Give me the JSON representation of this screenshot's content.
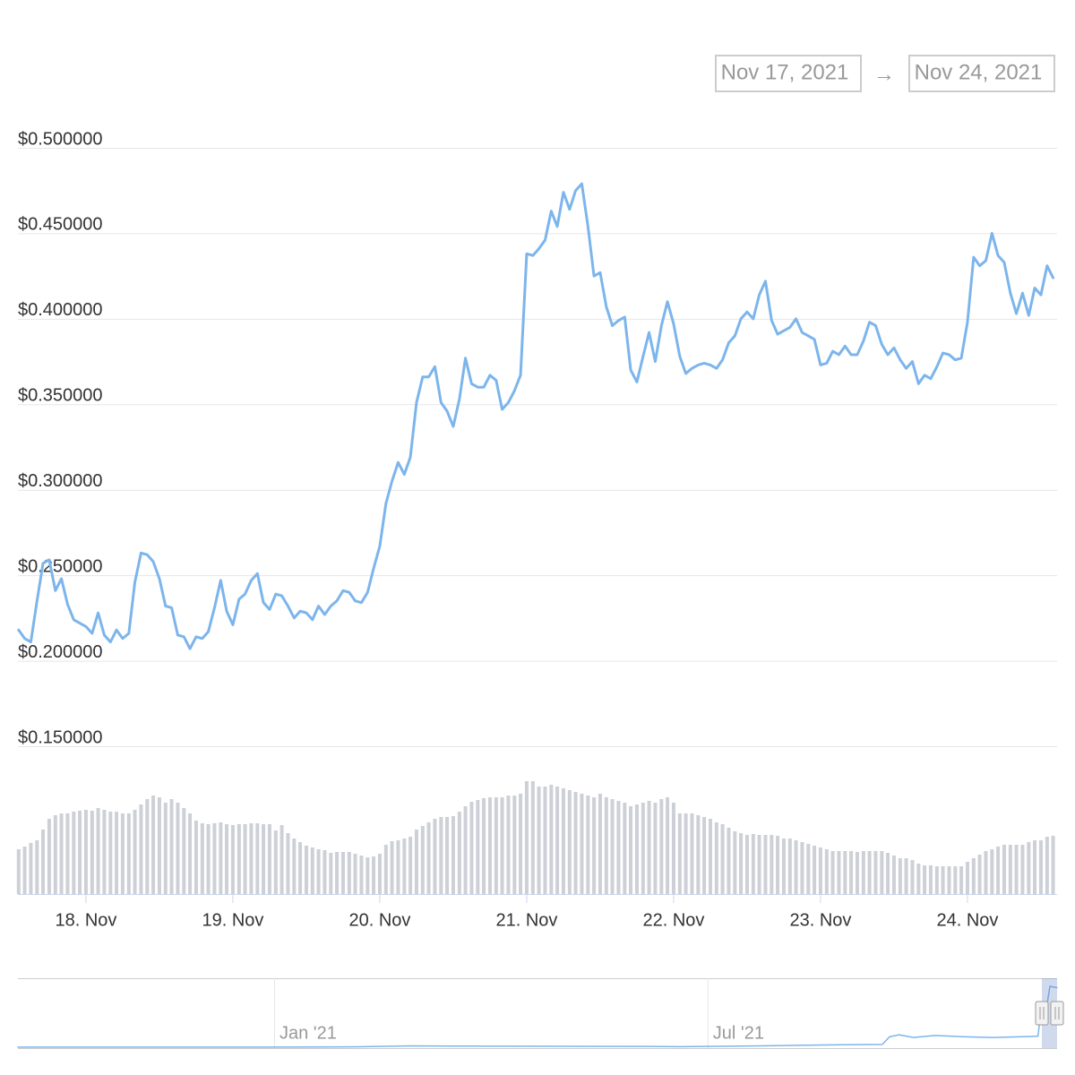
{
  "date_range": {
    "from": "Nov 17, 2021",
    "separator": "→",
    "to": "Nov 24, 2021"
  },
  "chart_data": {
    "type": "line",
    "color": "#7cb5ec",
    "grid": true,
    "xlim": [
      17.537,
      24.61
    ],
    "ylim": [
      0.15,
      0.5
    ],
    "xticks": [
      {
        "value": 18,
        "label": "18. Nov"
      },
      {
        "value": 19,
        "label": "19. Nov"
      },
      {
        "value": 20,
        "label": "20. Nov"
      },
      {
        "value": 21,
        "label": "21. Nov"
      },
      {
        "value": 22,
        "label": "22. Nov"
      },
      {
        "value": 23,
        "label": "23. Nov"
      },
      {
        "value": 24,
        "label": "24. Nov"
      }
    ],
    "yticks": [
      {
        "value": 0.15,
        "label": "$0.150000"
      },
      {
        "value": 0.2,
        "label": "$0.200000"
      },
      {
        "value": 0.25,
        "label": "$0.250000"
      },
      {
        "value": 0.3,
        "label": "$0.300000"
      },
      {
        "value": 0.35,
        "label": "$0.350000"
      },
      {
        "value": 0.4,
        "label": "$0.400000"
      },
      {
        "value": 0.45,
        "label": "$0.450000"
      },
      {
        "value": 0.5,
        "label": "$0.500000"
      }
    ],
    "x": [
      17.542,
      17.583,
      17.625,
      17.667,
      17.708,
      17.75,
      17.792,
      17.833,
      17.875,
      17.917,
      17.958,
      18,
      18.042,
      18.083,
      18.125,
      18.167,
      18.208,
      18.25,
      18.292,
      18.333,
      18.375,
      18.417,
      18.458,
      18.5,
      18.542,
      18.583,
      18.625,
      18.667,
      18.708,
      18.75,
      18.792,
      18.833,
      18.875,
      18.917,
      18.958,
      19,
      19.042,
      19.083,
      19.125,
      19.167,
      19.208,
      19.25,
      19.292,
      19.333,
      19.375,
      19.417,
      19.458,
      19.5,
      19.542,
      19.583,
      19.625,
      19.667,
      19.708,
      19.75,
      19.792,
      19.833,
      19.875,
      19.917,
      19.958,
      20,
      20.042,
      20.083,
      20.125,
      20.167,
      20.208,
      20.25,
      20.292,
      20.333,
      20.375,
      20.417,
      20.458,
      20.5,
      20.542,
      20.583,
      20.625,
      20.667,
      20.708,
      20.75,
      20.792,
      20.833,
      20.875,
      20.917,
      20.958,
      21,
      21.042,
      21.083,
      21.125,
      21.167,
      21.208,
      21.25,
      21.292,
      21.333,
      21.375,
      21.417,
      21.458,
      21.5,
      21.542,
      21.583,
      21.625,
      21.667,
      21.708,
      21.75,
      21.792,
      21.833,
      21.875,
      21.917,
      21.958,
      22,
      22.042,
      22.083,
      22.125,
      22.167,
      22.208,
      22.25,
      22.292,
      22.333,
      22.375,
      22.417,
      22.458,
      22.5,
      22.542,
      22.583,
      22.625,
      22.667,
      22.708,
      22.75,
      22.792,
      22.833,
      22.875,
      22.917,
      22.958,
      23,
      23.042,
      23.083,
      23.125,
      23.167,
      23.208,
      23.25,
      23.292,
      23.333,
      23.375,
      23.417,
      23.458,
      23.5,
      23.542,
      23.583,
      23.625,
      23.667,
      23.708,
      23.75,
      23.792,
      23.833,
      23.875,
      23.917,
      23.958,
      24,
      24.042,
      24.083,
      24.125,
      24.167,
      24.208,
      24.25,
      24.292,
      24.333,
      24.375,
      24.417,
      24.458,
      24.5,
      24.542,
      24.583
    ],
    "values": [
      0.218,
      0.213,
      0.211,
      0.235,
      0.257,
      0.259,
      0.241,
      0.248,
      0.233,
      0.224,
      0.222,
      0.22,
      0.216,
      0.228,
      0.215,
      0.211,
      0.218,
      0.213,
      0.216,
      0.246,
      0.263,
      0.262,
      0.258,
      0.248,
      0.232,
      0.231,
      0.215,
      0.214,
      0.207,
      0.214,
      0.213,
      0.217,
      0.231,
      0.247,
      0.229,
      0.221,
      0.236,
      0.239,
      0.247,
      0.251,
      0.234,
      0.23,
      0.239,
      0.238,
      0.232,
      0.225,
      0.229,
      0.228,
      0.224,
      0.232,
      0.227,
      0.232,
      0.235,
      0.241,
      0.24,
      0.235,
      0.234,
      0.24,
      0.254,
      0.267,
      0.292,
      0.305,
      0.316,
      0.309,
      0.319,
      0.351,
      0.366,
      0.366,
      0.372,
      0.351,
      0.346,
      0.337,
      0.353,
      0.377,
      0.362,
      0.36,
      0.36,
      0.367,
      0.364,
      0.347,
      0.351,
      0.358,
      0.367,
      0.438,
      0.437,
      0.441,
      0.446,
      0.463,
      0.454,
      0.474,
      0.464,
      0.475,
      0.479,
      0.454,
      0.425,
      0.427,
      0.407,
      0.396,
      0.399,
      0.401,
      0.37,
      0.363,
      0.378,
      0.392,
      0.375,
      0.396,
      0.41,
      0.397,
      0.378,
      0.368,
      0.371,
      0.373,
      0.374,
      0.373,
      0.371,
      0.376,
      0.386,
      0.39,
      0.4,
      0.404,
      0.4,
      0.414,
      0.422,
      0.399,
      0.391,
      0.393,
      0.395,
      0.4,
      0.392,
      0.39,
      0.388,
      0.373,
      0.374,
      0.381,
      0.379,
      0.384,
      0.379,
      0.379,
      0.387,
      0.398,
      0.396,
      0.385,
      0.379,
      0.383,
      0.376,
      0.371,
      0.375,
      0.362,
      0.367,
      0.365,
      0.372,
      0.38,
      0.379,
      0.376,
      0.377,
      0.398,
      0.436,
      0.431,
      0.434,
      0.45,
      0.437,
      0.433,
      0.415,
      0.403,
      0.415,
      0.402,
      0.418,
      0.414,
      0.431,
      0.424
    ],
    "volume": {
      "type": "bar",
      "color": "#cdd0d6",
      "values": [
        50,
        53,
        57,
        60,
        72,
        84,
        88,
        90,
        90,
        92,
        93,
        94,
        93,
        96,
        94,
        92,
        92,
        90,
        90,
        94,
        100,
        106,
        110,
        108,
        102,
        106,
        102,
        96,
        90,
        82,
        79,
        78,
        79,
        80,
        78,
        77,
        78,
        78,
        79,
        79,
        78,
        78,
        71,
        77,
        68,
        62,
        58,
        54,
        52,
        50,
        49,
        46,
        47,
        47,
        47,
        45,
        43,
        41,
        42,
        45,
        55,
        59,
        60,
        62,
        64,
        72,
        76,
        80,
        84,
        86,
        86,
        87,
        92,
        98,
        103,
        105,
        107,
        108,
        108,
        108,
        110,
        110,
        112,
        126,
        126,
        120,
        120,
        122,
        120,
        118,
        116,
        114,
        112,
        110,
        108,
        112,
        108,
        106,
        104,
        102,
        98,
        100,
        102,
        104,
        102,
        106,
        108,
        102,
        90,
        90,
        90,
        88,
        86,
        84,
        80,
        78,
        74,
        70,
        68,
        66,
        67,
        66,
        66,
        66,
        65,
        62,
        62,
        60,
        58,
        56,
        54,
        52,
        50,
        48,
        48,
        48,
        48,
        47,
        48,
        48,
        48,
        48,
        46,
        43,
        40,
        40,
        38,
        34,
        32,
        32,
        31,
        31,
        31,
        31,
        31,
        36,
        40,
        44,
        48,
        50,
        53,
        55,
        55,
        55,
        55,
        58,
        60,
        60,
        64,
        65
      ]
    }
  },
  "navigator": {
    "type": "line",
    "color": "#7cb5ec",
    "xlim": [
      "2020-09-16",
      "2021-11-24"
    ],
    "xticks": [
      {
        "value": "2021-01-01",
        "label": "Jan '21"
      },
      {
        "value": "2021-07-01",
        "label": "Jul '21"
      }
    ],
    "x": [
      "2020-09-16",
      "2020-12-29",
      "2021-02-05",
      "2021-02-27",
      "2021-03-22",
      "2021-04-21",
      "2021-06-07",
      "2021-06-19",
      "2021-07-23",
      "2021-08-26",
      "2021-09-12",
      "2021-09-15",
      "2021-09-19",
      "2021-09-25",
      "2021-10-04",
      "2021-10-17",
      "2021-10-28",
      "2021-11-08",
      "2021-11-16",
      "2021-11-17",
      "2021-11-20",
      "2021-11-21",
      "2021-11-24"
    ],
    "values": [
      0.001,
      0.001,
      0.003,
      0.01,
      0.008,
      0.007,
      0.006,
      0.004,
      0.01,
      0.018,
      0.02,
      0.075,
      0.09,
      0.07,
      0.085,
      0.075,
      0.07,
      0.075,
      0.08,
      0.22,
      0.33,
      0.44,
      0.43
    ]
  }
}
